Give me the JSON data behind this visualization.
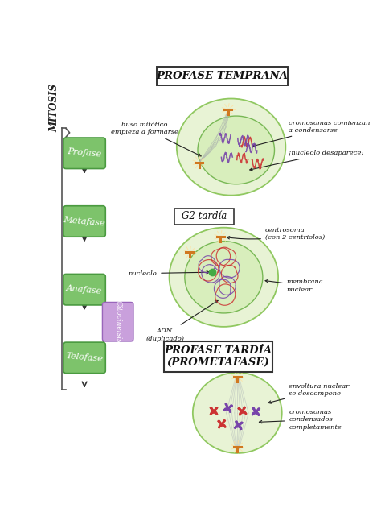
{
  "bg_color": "#ffffff",
  "title1": "PROFASE TEMPRANA",
  "title2": "G2 tardía",
  "title3": "PROFASE TARDÍA\n(PROMETAFASE)",
  "left_label": "MITOSIS",
  "stages": [
    "Profase",
    "Metafase",
    "Anafase",
    "Telofase"
  ],
  "cytokinesis": "Citocineisis",
  "stage_color": "#7dc36b",
  "stage_edge": "#4a9a40",
  "cytokinesis_color": "#c9a0dc",
  "cell_outer_fill": "#e8f3d5",
  "cell_outer_edge": "#90c860",
  "cell_inner_fill": "#d8eebc",
  "cell_inner_edge": "#78b855",
  "centrosome_color": "#d07820",
  "chrom_purple": "#7744aa",
  "chrom_red": "#cc3333",
  "nucleolus_color": "#44aa44",
  "ann1_huso": "huso mitótico\nempieza a formarse",
  "ann1_crom": "cromosomas comienzan\na condensarse",
  "ann1_nuc": "¡nucleolo desaparece!",
  "ann2_centro": "centrosoma\n(con 2 centriolos)",
  "ann2_nuc": "nucleolo",
  "ann2_memb": "membrana\nnuclear",
  "ann2_adn": "ADN\n(duplicado)",
  "ann3_env": "envoltura nuclear\nse descompone",
  "ann3_crom": "cromosomas\ncondensados\ncompletamente"
}
